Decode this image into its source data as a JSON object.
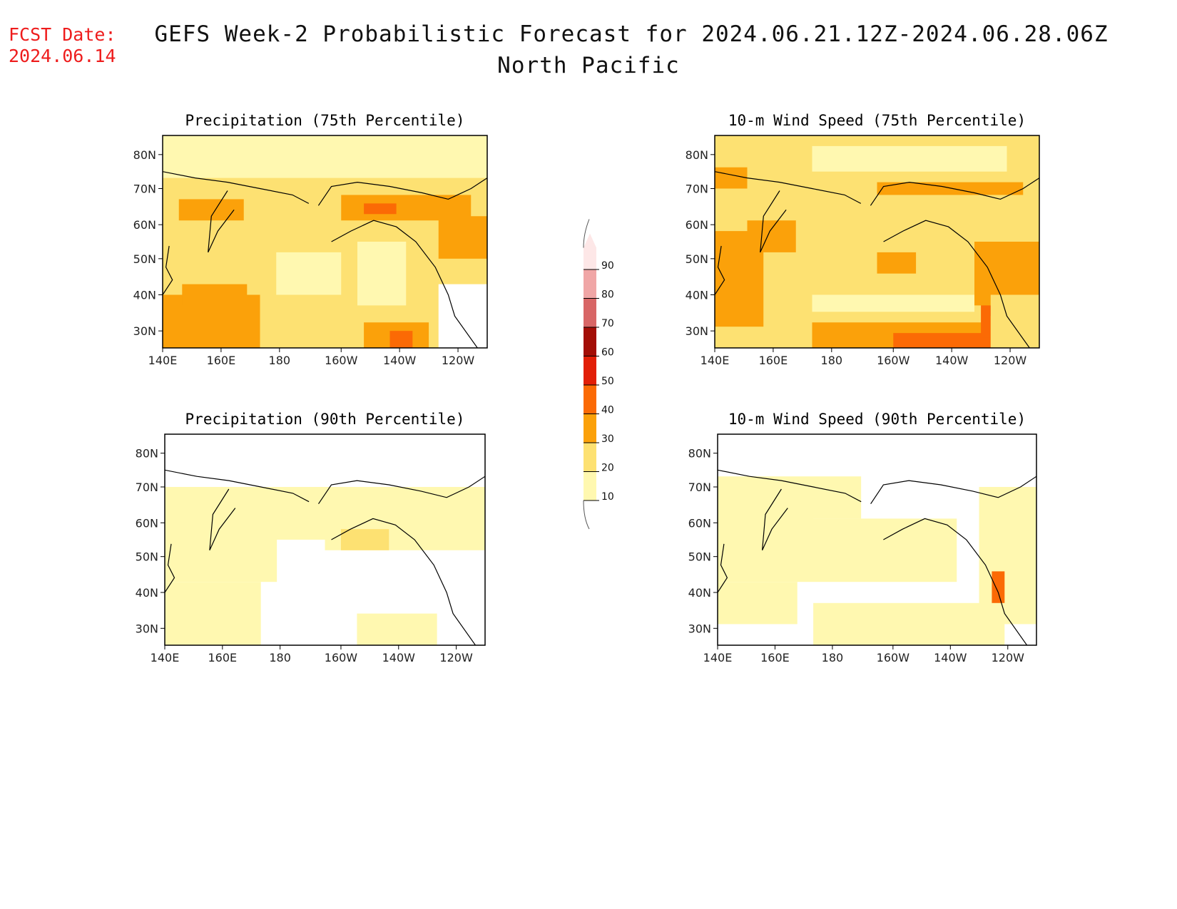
{
  "header": {
    "fcst_label": "FCST Date:",
    "fcst_date": "2024.06.14",
    "title": "GEFS Week-2 Probabilistic Forecast for 2024.06.21.12Z-2024.06.28.06Z",
    "region": "North Pacific"
  },
  "lat_labels": [
    "80N",
    "70N",
    "60N",
    "50N",
    "40N",
    "30N"
  ],
  "lon_labels": [
    "140E",
    "160E",
    "180",
    "160W",
    "140W",
    "120W"
  ],
  "panels": [
    {
      "id": "precip-75",
      "title": "Precipitation (75th Percentile)"
    },
    {
      "id": "wind-75",
      "title": "10-m Wind Speed (75th Percentile)"
    },
    {
      "id": "precip-90",
      "title": "Precipitation (90th Percentile)"
    },
    {
      "id": "wind-90",
      "title": "10-m Wind Speed (90th Percentile)"
    }
  ],
  "colorbar": {
    "levels": [
      "10",
      "20",
      "30",
      "40",
      "50",
      "60",
      "70",
      "80",
      "90"
    ],
    "colors": [
      "#fff8b0",
      "#fde172",
      "#fba10a",
      "#fb6a05",
      "#e21f07",
      "#a30e06",
      "#d86666",
      "#f0a6a6",
      "#fde7e7"
    ]
  }
}
